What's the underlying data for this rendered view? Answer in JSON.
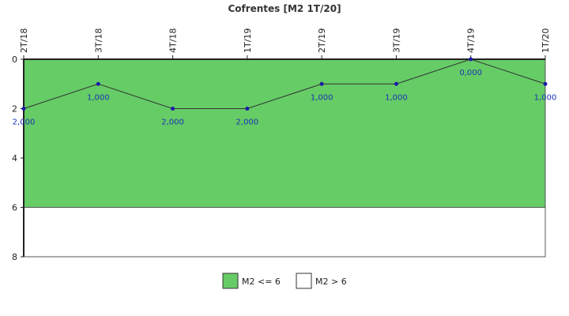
{
  "chart_data": {
    "type": "line",
    "title": "Cofrentes [M2 1T/20]",
    "xlabel": "",
    "ylabel": "",
    "categories": [
      "2T/18",
      "3T/18",
      "4T/18",
      "1T/19",
      "2T/19",
      "3T/19",
      "4T/19",
      "1T/20"
    ],
    "series": [
      {
        "values": [
          2,
          1,
          2,
          2,
          1,
          1,
          0,
          1
        ],
        "labels": [
          "2,000",
          "1,000",
          "2,000",
          "2,000",
          "1,000",
          "1,000",
          "0,000",
          "1,000"
        ],
        "color": "#333333",
        "marker_color": "#1a1aa6"
      }
    ],
    "ylim": [
      0,
      8
    ],
    "y_inverted": true,
    "yticks": [
      0,
      2,
      4,
      6,
      8
    ],
    "ytick_labels": [
      "0",
      "2",
      "4",
      "6",
      "8"
    ],
    "bands": [
      {
        "name": "M2 <= 6",
        "from": 0,
        "to": 6,
        "color": "#66cc66"
      },
      {
        "name": "M2 > 6",
        "from": 6,
        "to": 8,
        "color": "#ffffff"
      }
    ],
    "legend_position": "bottom-center",
    "grid": false
  }
}
